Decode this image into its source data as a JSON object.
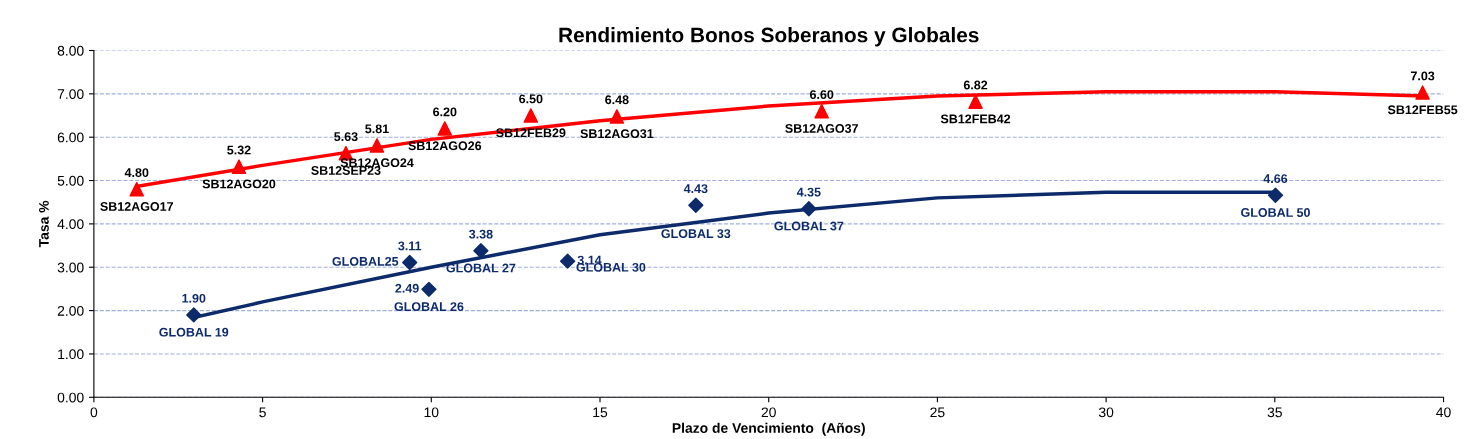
{
  "chart_data": {
    "type": "scatter",
    "title": "Rendimiento Bonos Soberanos y Globales",
    "xlabel": "Plazo de Vencimiento  (Años)",
    "ylabel": "Tasa %",
    "xlim": [
      0,
      40
    ],
    "xticks": [
      0,
      5,
      10,
      15,
      20,
      25,
      30,
      35,
      40
    ],
    "ylim": [
      0,
      8
    ],
    "yticks": [
      {
        "value": 0,
        "label": "0.00"
      },
      {
        "value": 1,
        "label": "1.00"
      },
      {
        "value": 2,
        "label": "2.00"
      },
      {
        "value": 3,
        "label": "3.00"
      },
      {
        "value": 4,
        "label": "4.00"
      },
      {
        "value": 5,
        "label": "5.00"
      },
      {
        "value": 6,
        "label": "6.00"
      },
      {
        "value": 7,
        "label": "7.00"
      },
      {
        "value": 8,
        "label": "8.00"
      }
    ],
    "grid": "y",
    "legend": false,
    "series": [
      {
        "type": "line",
        "color": "#ff0000",
        "x": [
          1.3,
          5,
          10,
          15,
          20,
          25,
          30,
          35,
          39.4
        ],
        "values": [
          4.87,
          5.35,
          5.95,
          6.38,
          6.72,
          6.95,
          7.05,
          7.05,
          6.95
        ]
      },
      {
        "type": "line",
        "color": "#0d2a6b",
        "x": [
          3,
          5,
          10,
          15,
          20,
          25,
          30,
          35
        ],
        "values": [
          1.85,
          2.2,
          3.0,
          3.75,
          4.25,
          4.6,
          4.73,
          4.73
        ]
      },
      {
        "marker": "triangle",
        "color": "#ff0000",
        "x": [
          1.27,
          4.3,
          7.47,
          8.39,
          10.4,
          12.95,
          15.5,
          21.57,
          26.13,
          39.38
        ],
        "values": [
          4.8,
          5.32,
          5.63,
          5.81,
          6.2,
          6.5,
          6.48,
          6.6,
          6.82,
          7.03
        ],
        "value_labels": [
          "4.80",
          "5.32",
          "5.63",
          "5.81",
          "6.20",
          "6.50",
          "6.48",
          "6.60",
          "6.82",
          "7.03"
        ]
      },
      {
        "marker": "diamond",
        "color": "#0d2a6b",
        "x": [
          2.96,
          9.36,
          9.93,
          11.47,
          14.04,
          17.84,
          21.19,
          35.02
        ],
        "values": [
          1.9,
          3.11,
          2.49,
          3.38,
          3.14,
          4.43,
          4.35,
          4.66
        ],
        "value_labels": [
          "1.90",
          "3.11",
          "2.49",
          "3.38",
          "3.14",
          "4.43",
          "4.35",
          "4.66"
        ]
      }
    ],
    "annotations": [
      {
        "text": "SB12AGO17",
        "x": 1.27,
        "y": 4.8
      },
      {
        "text": "SB12AGO20",
        "x": 4.3,
        "y": 5.32
      },
      {
        "text": "SB12SEP23",
        "x": 7.47,
        "y": 5.63
      },
      {
        "text": "SB12AGO24",
        "x": 8.39,
        "y": 5.81
      },
      {
        "text": "SB12AGO26",
        "x": 10.4,
        "y": 6.2
      },
      {
        "text": "SB12FEB29",
        "x": 12.95,
        "y": 6.5
      },
      {
        "text": "SB12AGO31",
        "x": 15.5,
        "y": 6.48
      },
      {
        "text": "SB12AGO37",
        "x": 21.57,
        "y": 6.6
      },
      {
        "text": "SB12FEB42",
        "x": 26.13,
        "y": 6.82
      },
      {
        "text": "SB12FEB55",
        "x": 39.38,
        "y": 7.03
      },
      {
        "text": "GLOBAL 19",
        "x": 2.96,
        "y": 1.9
      },
      {
        "text": "GLOBAL25",
        "x": 9.36,
        "y": 3.11
      },
      {
        "text": "GLOBAL 26",
        "x": 9.93,
        "y": 2.49
      },
      {
        "text": "GLOBAL 27",
        "x": 11.47,
        "y": 3.38
      },
      {
        "text": "GLOBAL 30",
        "x": 14.04,
        "y": 3.14
      },
      {
        "text": "GLOBAL 33",
        "x": 17.84,
        "y": 4.43
      },
      {
        "text": "GLOBAL 37",
        "x": 21.19,
        "y": 4.35
      },
      {
        "text": "GLOBAL 50",
        "x": 35.02,
        "y": 4.66
      }
    ]
  }
}
